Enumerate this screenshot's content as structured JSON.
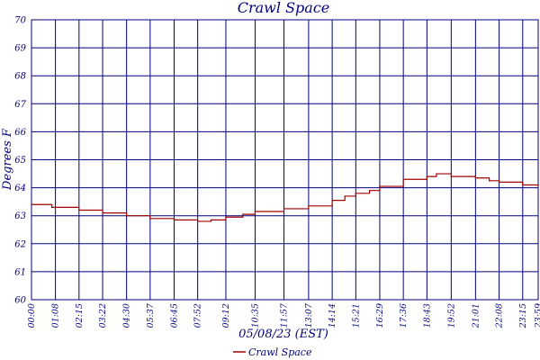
{
  "chart_data": {
    "type": "line",
    "title": "Crawl Space",
    "xlabel": "05/08/23 (EST)",
    "ylabel": "Degrees F",
    "ylim": [
      60,
      70
    ],
    "y_ticks": [
      "60",
      "61",
      "62",
      "63",
      "64",
      "65",
      "66",
      "67",
      "68",
      "69",
      "70"
    ],
    "x_ticks": [
      "00:00",
      "01:08",
      "02:15",
      "03:22",
      "04:30",
      "05:37",
      "06:45",
      "07:52",
      "09:12",
      "10:35",
      "11:57",
      "13:07",
      "14:14",
      "15:21",
      "16:29",
      "17:36",
      "18:43",
      "19:52",
      "21:01",
      "22:08",
      "23:15",
      "23:59"
    ],
    "grid": true,
    "series": [
      {
        "name": "Crawl Space",
        "color": "#a00000",
        "points": [
          {
            "x": "00:00",
            "y": 63.4
          },
          {
            "x": "00:30",
            "y": 63.4
          },
          {
            "x": "00:58",
            "y": 63.3
          },
          {
            "x": "01:08",
            "y": 63.3
          },
          {
            "x": "02:15",
            "y": 63.2
          },
          {
            "x": "03:22",
            "y": 63.1
          },
          {
            "x": "04:30",
            "y": 63.0
          },
          {
            "x": "05:37",
            "y": 62.9
          },
          {
            "x": "06:45",
            "y": 62.85
          },
          {
            "x": "07:52",
            "y": 62.8
          },
          {
            "x": "08:30",
            "y": 62.85
          },
          {
            "x": "09:12",
            "y": 62.95
          },
          {
            "x": "10:00",
            "y": 63.05
          },
          {
            "x": "10:35",
            "y": 63.15
          },
          {
            "x": "11:57",
            "y": 63.25
          },
          {
            "x": "13:07",
            "y": 63.35
          },
          {
            "x": "14:14",
            "y": 63.55
          },
          {
            "x": "14:50",
            "y": 63.7
          },
          {
            "x": "15:21",
            "y": 63.8
          },
          {
            "x": "16:00",
            "y": 63.9
          },
          {
            "x": "16:29",
            "y": 64.05
          },
          {
            "x": "17:36",
            "y": 64.3
          },
          {
            "x": "18:43",
            "y": 64.4
          },
          {
            "x": "19:10",
            "y": 64.5
          },
          {
            "x": "19:52",
            "y": 64.4
          },
          {
            "x": "21:01",
            "y": 64.35
          },
          {
            "x": "21:40",
            "y": 64.25
          },
          {
            "x": "22:08",
            "y": 64.2
          },
          {
            "x": "23:15",
            "y": 64.1
          },
          {
            "x": "23:59",
            "y": 64.05
          }
        ]
      }
    ],
    "legend_position": "bottom-center"
  }
}
